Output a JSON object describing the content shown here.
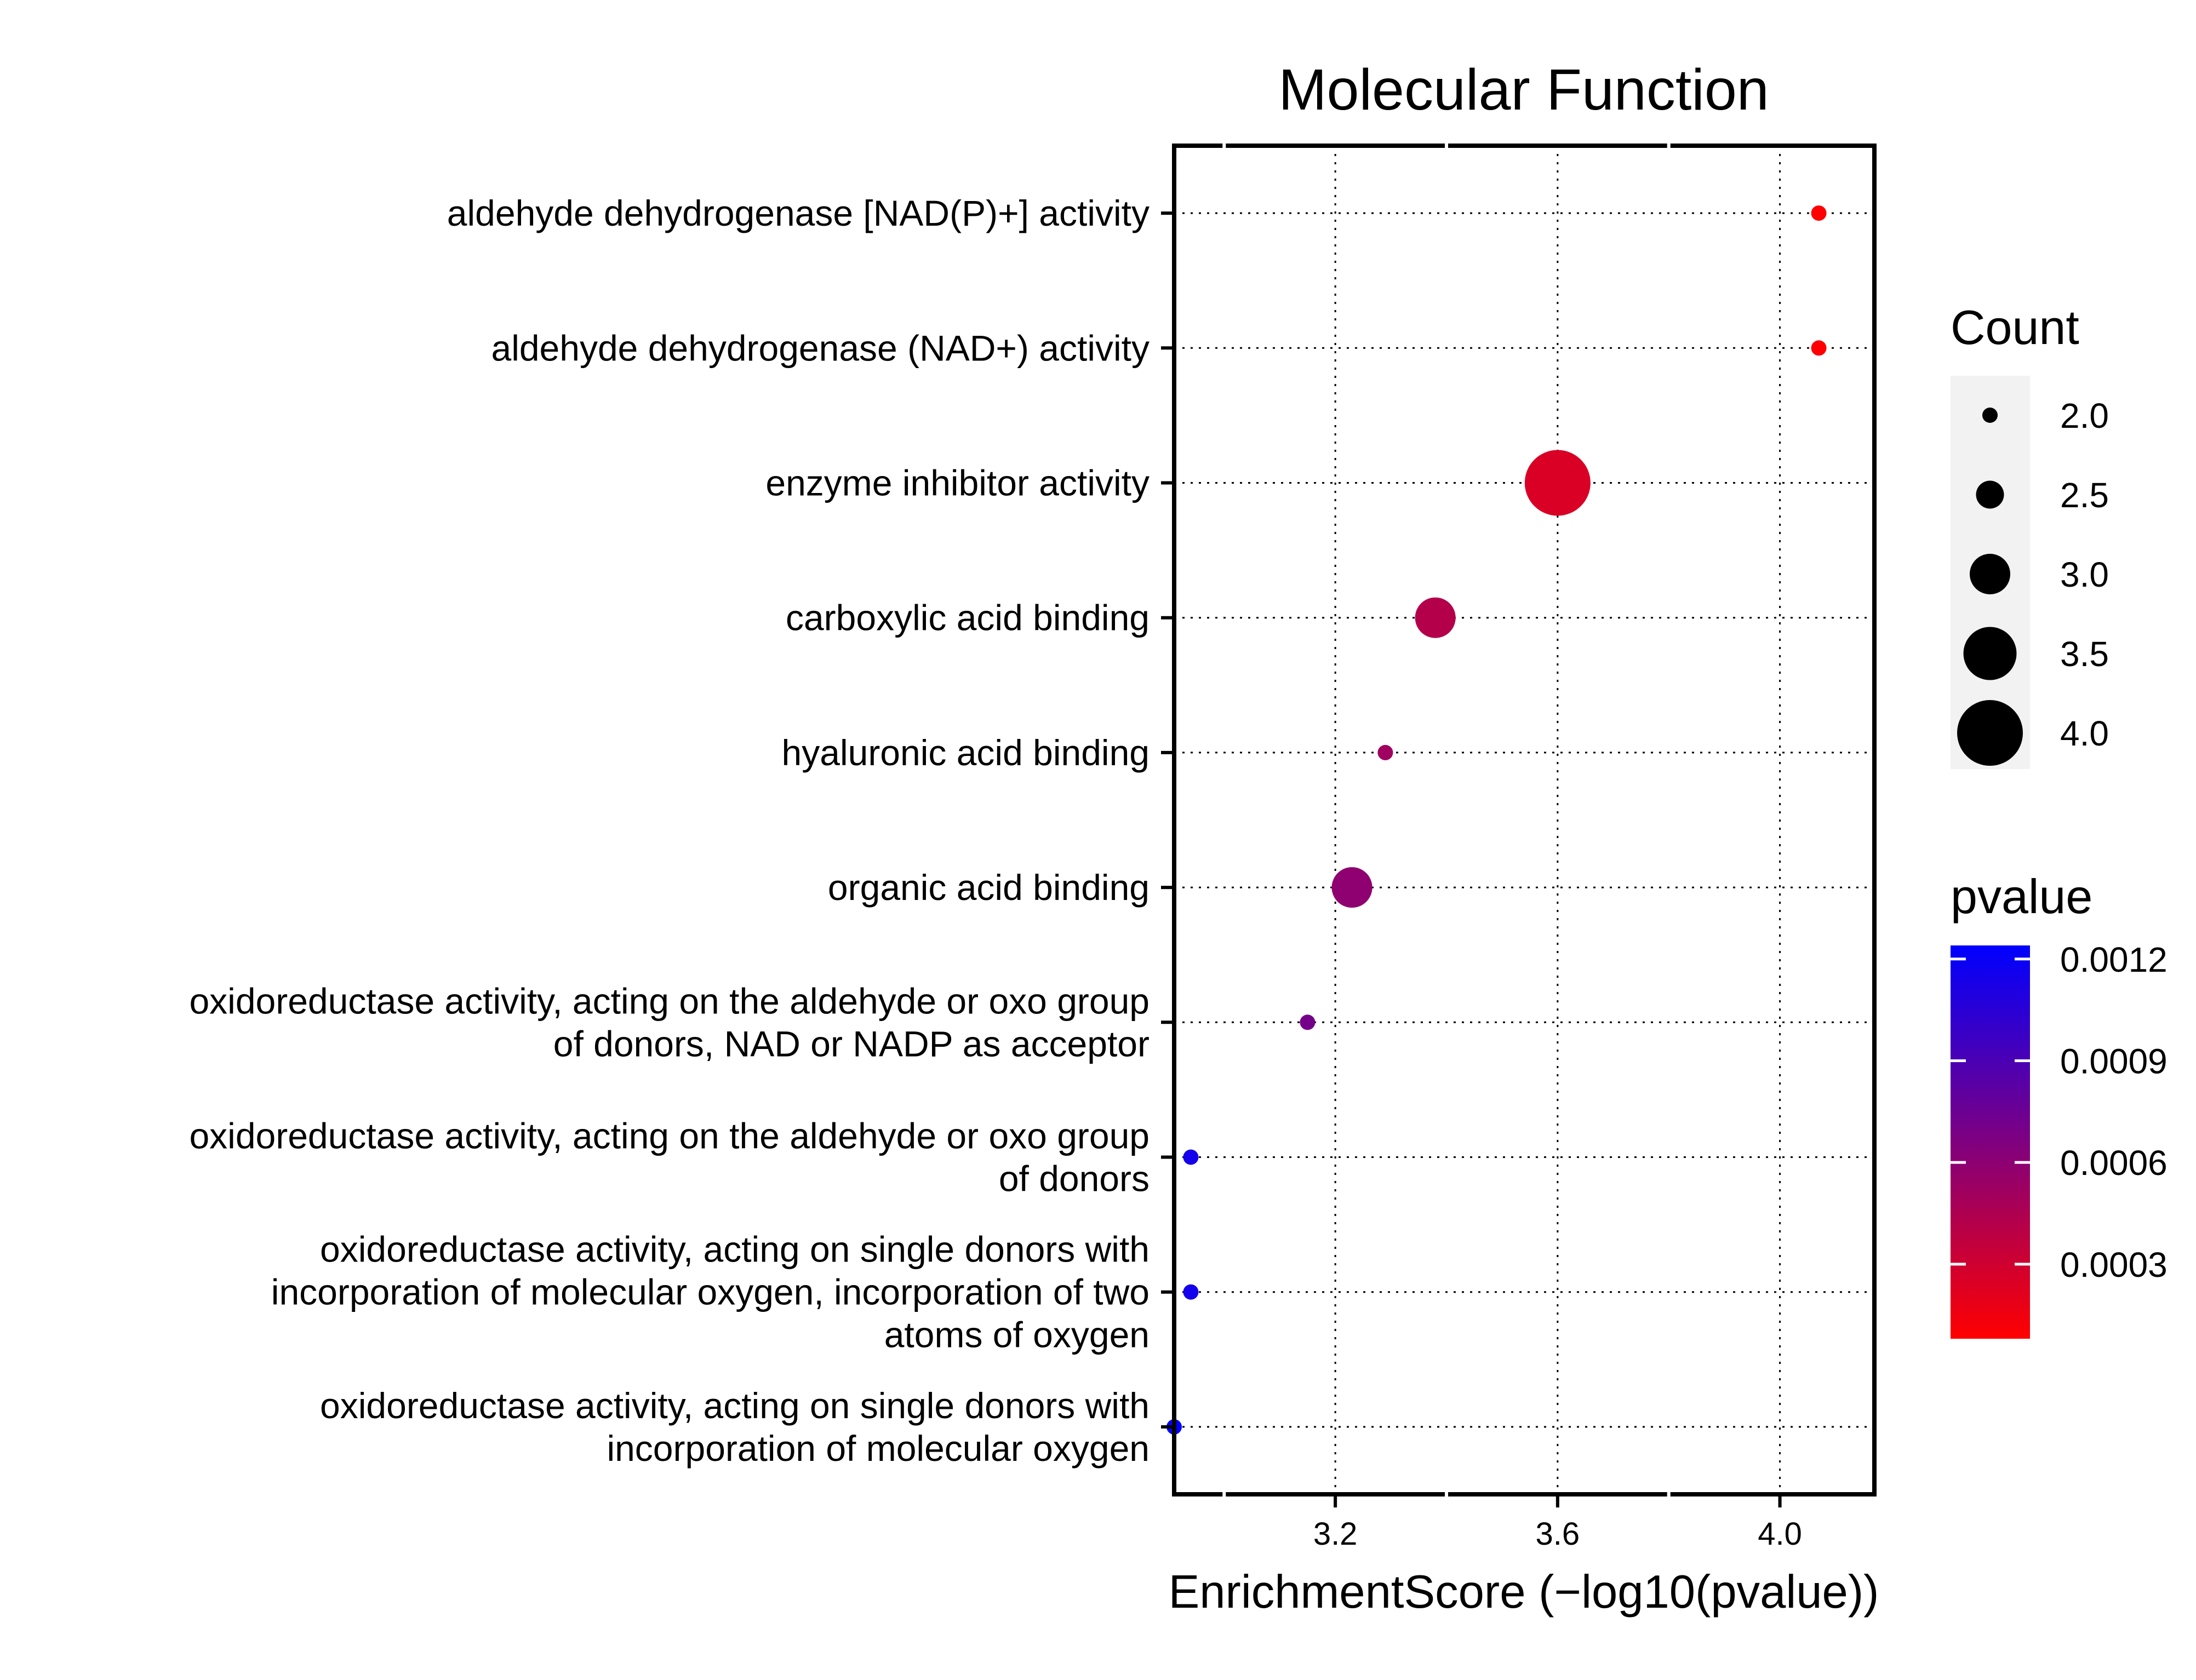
{
  "chart_data": {
    "type": "scatter",
    "title": "Molecular Function",
    "xlabel": "EnrichmentScore (−log10(pvalue))",
    "ylabel": "",
    "xlim": [
      2.91,
      4.17
    ],
    "x_ticks": [
      3.2,
      3.6,
      4.0
    ],
    "x_tick_labels": [
      "3.2",
      "3.6",
      "4.0"
    ],
    "grid": true,
    "categories": [
      [
        "aldehyde dehydrogenase [NAD(P)+] activity"
      ],
      [
        "aldehyde dehydrogenase (NAD+) activity"
      ],
      [
        "enzyme inhibitor activity"
      ],
      [
        "carboxylic acid binding"
      ],
      [
        "hyaluronic acid binding"
      ],
      [
        "organic acid binding"
      ],
      [
        "oxidoreductase activity, acting on the aldehyde or oxo group",
        "of donors, NAD or NADP as acceptor"
      ],
      [
        "oxidoreductase activity, acting on the aldehyde or oxo group",
        "of donors"
      ],
      [
        "oxidoreductase activity, acting on single donors with",
        "incorporation of molecular oxygen, incorporation of two",
        "atoms of oxygen"
      ],
      [
        "oxidoreductase activity, acting on single donors with",
        "incorporation of molecular oxygen"
      ]
    ],
    "points": [
      {
        "x": 4.07,
        "count": 2,
        "pvalue": 8.5e-05
      },
      {
        "x": 4.07,
        "count": 2,
        "pvalue": 8.5e-05
      },
      {
        "x": 3.6,
        "count": 4,
        "pvalue": 0.00025
      },
      {
        "x": 3.38,
        "count": 3,
        "pvalue": 0.00042
      },
      {
        "x": 3.29,
        "count": 2,
        "pvalue": 0.00051
      },
      {
        "x": 3.23,
        "count": 3,
        "pvalue": 0.00059
      },
      {
        "x": 3.15,
        "count": 2,
        "pvalue": 0.00071
      },
      {
        "x": 2.94,
        "count": 2,
        "pvalue": 0.00115
      },
      {
        "x": 2.94,
        "count": 2,
        "pvalue": 0.00115
      },
      {
        "x": 2.91,
        "count": 2,
        "pvalue": 0.00123
      }
    ],
    "legend_size": {
      "title": "Count",
      "values": [
        2.0,
        2.5,
        3.0,
        3.5,
        4.0
      ],
      "labels": [
        "2.0",
        "2.5",
        "3.0",
        "3.5",
        "4.0"
      ],
      "placement": "right"
    },
    "legend_color": {
      "title": "pvalue",
      "range": [
        8e-05,
        0.00124
      ],
      "ticks": [
        0.0012,
        0.0009,
        0.0006,
        0.0003
      ],
      "tick_labels": [
        "0.0012",
        "0.0009",
        "0.0006",
        "0.0003"
      ],
      "low_color": "#ff0000",
      "high_color": "#0000ff",
      "placement": "right"
    }
  }
}
